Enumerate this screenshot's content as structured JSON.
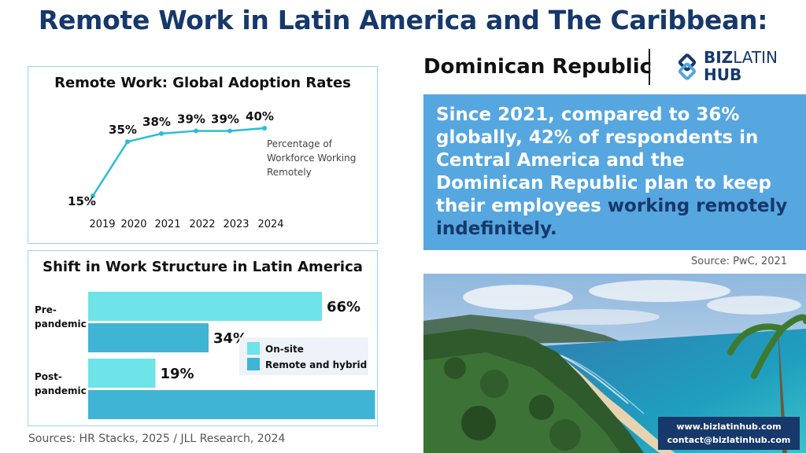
{
  "header": {
    "title": "Remote Work in Latin America and The Caribbean:",
    "country": "Dominican Republic"
  },
  "logo": {
    "line1_bold": "BIZ",
    "line1_light": "LATIN",
    "line2": "HUB"
  },
  "info": {
    "text_before": "Since 2021, compared to 36% globally, 42% of respondents in Central America and the Dominican Republic plan to keep their employees ",
    "text_highlight": "working remotely indefinitely."
  },
  "source_right": "Source:  PwC, 2021",
  "sources_left": "Sources: HR Stacks, 2025 /  JLL Research, 2024",
  "contact": {
    "website": "www.bizlatinhub.com",
    "email": "contact@bizlatinhub.com"
  },
  "colors": {
    "title": "#16386a",
    "info_bg": "#56a6df",
    "line": "#2bbcd6",
    "onsite": "#6ee3e8",
    "remote": "#40b4d4"
  },
  "chart_data": [
    {
      "type": "line",
      "title": "Remote Work: Global Adoption Rates",
      "x": [
        "2019",
        "2020",
        "2021",
        "2022",
        "2023",
        "2024"
      ],
      "series": [
        {
          "name": "Percentage of Workforce Working Remotely",
          "values": [
            15,
            35,
            38,
            39,
            39,
            40
          ]
        }
      ],
      "data_labels": [
        "15%",
        "35%",
        "38%",
        "39%",
        "39%",
        "40%"
      ],
      "annotation_lines": [
        "Percentage of",
        "Workforce Working",
        "Remotely"
      ],
      "ylim": [
        0,
        45
      ],
      "grid": false
    },
    {
      "type": "bar",
      "orientation": "horizontal",
      "title": "Shift in Work Structure in Latin America",
      "categories": [
        [
          "Pre-",
          "pandemic"
        ],
        [
          "Post-",
          "pandemic"
        ]
      ],
      "series": [
        {
          "name": "On-site",
          "values": [
            66,
            19
          ]
        },
        {
          "name": "Remote and hybrid",
          "values": [
            34,
            81
          ]
        }
      ],
      "unit": "%",
      "xlim": [
        0,
        100
      ],
      "legend": "right"
    }
  ]
}
